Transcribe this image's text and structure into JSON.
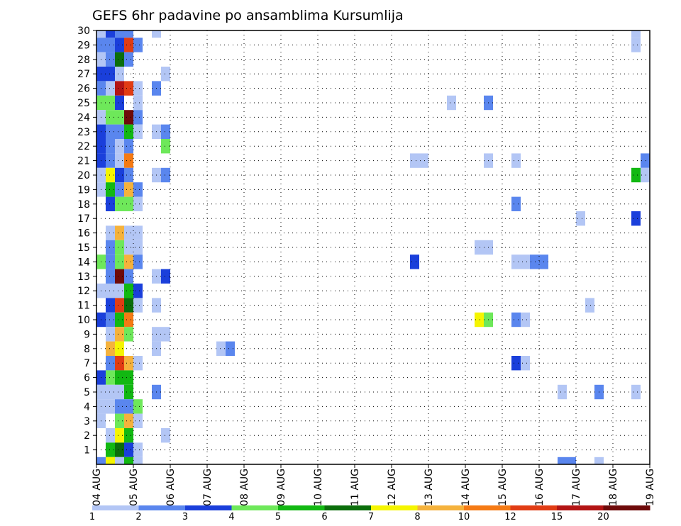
{
  "chart_data": {
    "type": "heatmap",
    "title": "GEFS 6hr padavine po ansamblima Kursumlija",
    "xlabel": "",
    "ylabel": "",
    "x_ticks": [
      "04 AUG",
      "05 AUG",
      "06 AUG",
      "07 AUG",
      "08 AUG",
      "09 AUG",
      "10 AUG",
      "11 AUG",
      "12 AUG",
      "13 AUG",
      "14 AUG",
      "15 AUG",
      "16 AUG",
      "17 AUG",
      "18 AUG",
      "19 AUG"
    ],
    "x_range": [
      "04 AUG 00Z",
      "19 AUG 00Z"
    ],
    "time_step_hours": 6,
    "y_ticks": [
      1,
      2,
      3,
      4,
      5,
      6,
      7,
      8,
      9,
      10,
      11,
      12,
      13,
      14,
      15,
      16,
      17,
      18,
      19,
      20,
      21,
      22,
      23,
      24,
      25,
      26,
      27,
      28,
      29,
      30
    ],
    "y_range": [
      0,
      30
    ],
    "grid": true,
    "legend": {
      "placement": "bottom",
      "levels": [
        1,
        2,
        3,
        4,
        5,
        6,
        7,
        8,
        10,
        12,
        15,
        20
      ],
      "labels": [
        "1",
        "2",
        "3",
        "4",
        "5",
        "6",
        "7",
        "8",
        "10",
        "12",
        "15",
        "20"
      ],
      "colors": [
        "#b3c6f5",
        "#5a86ee",
        "#1a3fdb",
        "#6ee85a",
        "#12b812",
        "#0b6e0b",
        "#f5f500",
        "#f5b23c",
        "#f57a14",
        "#e13c14",
        "#b31414",
        "#6e0a0a"
      ]
    },
    "cells": [
      {
        "x": "04 AUG 06Z",
        "y": 30,
        "c": 0
      },
      {
        "x": "04 AUG 12Z",
        "y": 30,
        "c": 2
      },
      {
        "x": "04 AUG 18Z",
        "y": 30,
        "c": 1
      },
      {
        "x": "05 AUG 00Z",
        "y": 30,
        "c": 1
      },
      {
        "x": "05 AUG 18Z",
        "y": 30,
        "c": 0
      },
      {
        "x": "18 AUG 18Z",
        "y": 30,
        "c": 0
      },
      {
        "x": "04 AUG 06Z",
        "y": 29,
        "c": 1
      },
      {
        "x": "04 AUG 12Z",
        "y": 29,
        "c": 1
      },
      {
        "x": "04 AUG 18Z",
        "y": 29,
        "c": 2
      },
      {
        "x": "05 AUG 00Z",
        "y": 29,
        "c": 9
      },
      {
        "x": "05 AUG 06Z",
        "y": 29,
        "c": 1
      },
      {
        "x": "18 AUG 18Z",
        "y": 29,
        "c": 0
      },
      {
        "x": "04 AUG 06Z",
        "y": 28,
        "c": 0
      },
      {
        "x": "04 AUG 12Z",
        "y": 28,
        "c": 1
      },
      {
        "x": "04 AUG 18Z",
        "y": 28,
        "c": 5
      },
      {
        "x": "05 AUG 00Z",
        "y": 28,
        "c": 1
      },
      {
        "x": "04 AUG 06Z",
        "y": 27,
        "c": 2
      },
      {
        "x": "04 AUG 12Z",
        "y": 27,
        "c": 2
      },
      {
        "x": "04 AUG 18Z",
        "y": 27,
        "c": 0
      },
      {
        "x": "06 AUG 00Z",
        "y": 27,
        "c": 0
      },
      {
        "x": "04 AUG 06Z",
        "y": 26,
        "c": 1
      },
      {
        "x": "04 AUG 12Z",
        "y": 26,
        "c": 0
      },
      {
        "x": "04 AUG 18Z",
        "y": 26,
        "c": 10
      },
      {
        "x": "05 AUG 00Z",
        "y": 26,
        "c": 9
      },
      {
        "x": "05 AUG 06Z",
        "y": 26,
        "c": 0
      },
      {
        "x": "05 AUG 18Z",
        "y": 26,
        "c": 1
      },
      {
        "x": "04 AUG 06Z",
        "y": 25,
        "c": 3
      },
      {
        "x": "04 AUG 12Z",
        "y": 25,
        "c": 3
      },
      {
        "x": "04 AUG 18Z",
        "y": 25,
        "c": 2
      },
      {
        "x": "05 AUG 06Z",
        "y": 25,
        "c": 0
      },
      {
        "x": "13 AUG 18Z",
        "y": 25,
        "c": 0
      },
      {
        "x": "14 AUG 18Z",
        "y": 25,
        "c": 1
      },
      {
        "x": "04 AUG 06Z",
        "y": 24,
        "c": 0
      },
      {
        "x": "04 AUG 12Z",
        "y": 24,
        "c": 3
      },
      {
        "x": "04 AUG 18Z",
        "y": 24,
        "c": 3
      },
      {
        "x": "05 AUG 00Z",
        "y": 24,
        "c": 11
      },
      {
        "x": "05 AUG 06Z",
        "y": 24,
        "c": 1
      },
      {
        "x": "04 AUG 06Z",
        "y": 23,
        "c": 2
      },
      {
        "x": "04 AUG 12Z",
        "y": 23,
        "c": 1
      },
      {
        "x": "04 AUG 18Z",
        "y": 23,
        "c": 1
      },
      {
        "x": "05 AUG 00Z",
        "y": 23,
        "c": 4
      },
      {
        "x": "05 AUG 06Z",
        "y": 23,
        "c": 0
      },
      {
        "x": "05 AUG 18Z",
        "y": 23,
        "c": 0
      },
      {
        "x": "06 AUG 00Z",
        "y": 23,
        "c": 1
      },
      {
        "x": "04 AUG 06Z",
        "y": 22,
        "c": 2
      },
      {
        "x": "04 AUG 12Z",
        "y": 22,
        "c": 1
      },
      {
        "x": "04 AUG 18Z",
        "y": 22,
        "c": 0
      },
      {
        "x": "05 AUG 00Z",
        "y": 22,
        "c": 1
      },
      {
        "x": "06 AUG 00Z",
        "y": 22,
        "c": 3
      },
      {
        "x": "04 AUG 06Z",
        "y": 21,
        "c": 2
      },
      {
        "x": "04 AUG 12Z",
        "y": 21,
        "c": 1
      },
      {
        "x": "04 AUG 18Z",
        "y": 21,
        "c": 0
      },
      {
        "x": "05 AUG 00Z",
        "y": 21,
        "c": 8
      },
      {
        "x": "12 AUG 18Z",
        "y": 21,
        "c": 0
      },
      {
        "x": "13 AUG 00Z",
        "y": 21,
        "c": 0
      },
      {
        "x": "14 AUG 18Z",
        "y": 21,
        "c": 0
      },
      {
        "x": "15 AUG 12Z",
        "y": 21,
        "c": 0
      },
      {
        "x": "19 AUG 00Z",
        "y": 21,
        "c": 1
      },
      {
        "x": "04 AUG 06Z",
        "y": 20,
        "c": 0
      },
      {
        "x": "04 AUG 12Z",
        "y": 20,
        "c": 6
      },
      {
        "x": "04 AUG 18Z",
        "y": 20,
        "c": 2
      },
      {
        "x": "05 AUG 00Z",
        "y": 20,
        "c": 1
      },
      {
        "x": "05 AUG 18Z",
        "y": 20,
        "c": 0
      },
      {
        "x": "06 AUG 00Z",
        "y": 20,
        "c": 1
      },
      {
        "x": "18 AUG 18Z",
        "y": 20,
        "c": 4
      },
      {
        "x": "19 AUG 00Z",
        "y": 20,
        "c": 0
      },
      {
        "x": "04 AUG 06Z",
        "y": 19,
        "c": 0
      },
      {
        "x": "04 AUG 12Z",
        "y": 19,
        "c": 4
      },
      {
        "x": "04 AUG 18Z",
        "y": 19,
        "c": 1
      },
      {
        "x": "05 AUG 00Z",
        "y": 19,
        "c": 7
      },
      {
        "x": "05 AUG 06Z",
        "y": 19,
        "c": 1
      },
      {
        "x": "04 AUG 12Z",
        "y": 18,
        "c": 2
      },
      {
        "x": "04 AUG 18Z",
        "y": 18,
        "c": 3
      },
      {
        "x": "05 AUG 00Z",
        "y": 18,
        "c": 3
      },
      {
        "x": "05 AUG 06Z",
        "y": 18,
        "c": 0
      },
      {
        "x": "15 AUG 12Z",
        "y": 18,
        "c": 1
      },
      {
        "x": "17 AUG 06Z",
        "y": 17,
        "c": 0
      },
      {
        "x": "18 AUG 18Z",
        "y": 17,
        "c": 2
      },
      {
        "x": "04 AUG 12Z",
        "y": 16,
        "c": 0
      },
      {
        "x": "04 AUG 18Z",
        "y": 16,
        "c": 7
      },
      {
        "x": "05 AUG 00Z",
        "y": 16,
        "c": 0
      },
      {
        "x": "05 AUG 06Z",
        "y": 16,
        "c": 0
      },
      {
        "x": "04 AUG 12Z",
        "y": 15,
        "c": 1
      },
      {
        "x": "04 AUG 18Z",
        "y": 15,
        "c": 3
      },
      {
        "x": "05 AUG 00Z",
        "y": 15,
        "c": 0
      },
      {
        "x": "05 AUG 06Z",
        "y": 15,
        "c": 0
      },
      {
        "x": "14 AUG 12Z",
        "y": 15,
        "c": 0
      },
      {
        "x": "14 AUG 18Z",
        "y": 15,
        "c": 0
      },
      {
        "x": "04 AUG 06Z",
        "y": 14,
        "c": 3
      },
      {
        "x": "04 AUG 12Z",
        "y": 14,
        "c": 1
      },
      {
        "x": "04 AUG 18Z",
        "y": 14,
        "c": 3
      },
      {
        "x": "05 AUG 00Z",
        "y": 14,
        "c": 7
      },
      {
        "x": "05 AUG 06Z",
        "y": 14,
        "c": 1
      },
      {
        "x": "12 AUG 18Z",
        "y": 14,
        "c": 2
      },
      {
        "x": "15 AUG 12Z",
        "y": 14,
        "c": 0
      },
      {
        "x": "15 AUG 18Z",
        "y": 14,
        "c": 0
      },
      {
        "x": "16 AUG 00Z",
        "y": 14,
        "c": 1
      },
      {
        "x": "16 AUG 06Z",
        "y": 14,
        "c": 1
      },
      {
        "x": "04 AUG 12Z",
        "y": 13,
        "c": 1
      },
      {
        "x": "04 AUG 18Z",
        "y": 13,
        "c": 11
      },
      {
        "x": "05 AUG 00Z",
        "y": 13,
        "c": 1
      },
      {
        "x": "05 AUG 18Z",
        "y": 13,
        "c": 0
      },
      {
        "x": "06 AUG 00Z",
        "y": 13,
        "c": 2
      },
      {
        "x": "04 AUG 06Z",
        "y": 12,
        "c": 0
      },
      {
        "x": "04 AUG 12Z",
        "y": 12,
        "c": 0
      },
      {
        "x": "04 AUG 18Z",
        "y": 12,
        "c": 0
      },
      {
        "x": "05 AUG 00Z",
        "y": 12,
        "c": 4
      },
      {
        "x": "05 AUG 06Z",
        "y": 12,
        "c": 2
      },
      {
        "x": "04 AUG 12Z",
        "y": 11,
        "c": 2
      },
      {
        "x": "04 AUG 18Z",
        "y": 11,
        "c": 9
      },
      {
        "x": "05 AUG 00Z",
        "y": 11,
        "c": 5
      },
      {
        "x": "05 AUG 06Z",
        "y": 11,
        "c": 0
      },
      {
        "x": "05 AUG 18Z",
        "y": 11,
        "c": 0
      },
      {
        "x": "17 AUG 12Z",
        "y": 11,
        "c": 0
      },
      {
        "x": "04 AUG 06Z",
        "y": 10,
        "c": 2
      },
      {
        "x": "04 AUG 12Z",
        "y": 10,
        "c": 1
      },
      {
        "x": "04 AUG 18Z",
        "y": 10,
        "c": 4
      },
      {
        "x": "05 AUG 00Z",
        "y": 10,
        "c": 8
      },
      {
        "x": "14 AUG 12Z",
        "y": 10,
        "c": 6
      },
      {
        "x": "14 AUG 18Z",
        "y": 10,
        "c": 3
      },
      {
        "x": "15 AUG 12Z",
        "y": 10,
        "c": 1
      },
      {
        "x": "15 AUG 18Z",
        "y": 10,
        "c": 0
      },
      {
        "x": "04 AUG 12Z",
        "y": 9,
        "c": 0
      },
      {
        "x": "04 AUG 18Z",
        "y": 9,
        "c": 7
      },
      {
        "x": "05 AUG 00Z",
        "y": 9,
        "c": 3
      },
      {
        "x": "05 AUG 18Z",
        "y": 9,
        "c": 0
      },
      {
        "x": "06 AUG 00Z",
        "y": 9,
        "c": 0
      },
      {
        "x": "04 AUG 12Z",
        "y": 8,
        "c": 7
      },
      {
        "x": "04 AUG 18Z",
        "y": 8,
        "c": 6
      },
      {
        "x": "05 AUG 18Z",
        "y": 8,
        "c": 0
      },
      {
        "x": "07 AUG 12Z",
        "y": 8,
        "c": 0
      },
      {
        "x": "07 AUG 18Z",
        "y": 8,
        "c": 1
      },
      {
        "x": "04 AUG 12Z",
        "y": 7,
        "c": 1
      },
      {
        "x": "04 AUG 18Z",
        "y": 7,
        "c": 9
      },
      {
        "x": "05 AUG 00Z",
        "y": 7,
        "c": 7
      },
      {
        "x": "05 AUG 06Z",
        "y": 7,
        "c": 0
      },
      {
        "x": "15 AUG 12Z",
        "y": 7,
        "c": 2
      },
      {
        "x": "15 AUG 18Z",
        "y": 7,
        "c": 0
      },
      {
        "x": "04 AUG 06Z",
        "y": 6,
        "c": 2
      },
      {
        "x": "04 AUG 12Z",
        "y": 6,
        "c": 3
      },
      {
        "x": "04 AUG 18Z",
        "y": 6,
        "c": 4
      },
      {
        "x": "05 AUG 00Z",
        "y": 6,
        "c": 4
      },
      {
        "x": "04 AUG 06Z",
        "y": 5,
        "c": 0
      },
      {
        "x": "04 AUG 12Z",
        "y": 5,
        "c": 0
      },
      {
        "x": "04 AUG 18Z",
        "y": 5,
        "c": 0
      },
      {
        "x": "05 AUG 00Z",
        "y": 5,
        "c": 4
      },
      {
        "x": "05 AUG 18Z",
        "y": 5,
        "c": 1
      },
      {
        "x": "16 AUG 18Z",
        "y": 5,
        "c": 0
      },
      {
        "x": "17 AUG 18Z",
        "y": 5,
        "c": 1
      },
      {
        "x": "18 AUG 18Z",
        "y": 5,
        "c": 0
      },
      {
        "x": "04 AUG 06Z",
        "y": 4,
        "c": 0
      },
      {
        "x": "04 AUG 12Z",
        "y": 4,
        "c": 0
      },
      {
        "x": "04 AUG 18Z",
        "y": 4,
        "c": 1
      },
      {
        "x": "05 AUG 00Z",
        "y": 4,
        "c": 1
      },
      {
        "x": "05 AUG 06Z",
        "y": 4,
        "c": 3
      },
      {
        "x": "04 AUG 06Z",
        "y": 3,
        "c": 0
      },
      {
        "x": "04 AUG 18Z",
        "y": 3,
        "c": 3
      },
      {
        "x": "05 AUG 00Z",
        "y": 3,
        "c": 7
      },
      {
        "x": "05 AUG 06Z",
        "y": 3,
        "c": 0
      },
      {
        "x": "04 AUG 12Z",
        "y": 2,
        "c": 0
      },
      {
        "x": "04 AUG 18Z",
        "y": 2,
        "c": 6
      },
      {
        "x": "05 AUG 00Z",
        "y": 2,
        "c": 4
      },
      {
        "x": "06 AUG 00Z",
        "y": 2,
        "c": 0
      },
      {
        "x": "04 AUG 12Z",
        "y": 1,
        "c": 4
      },
      {
        "x": "04 AUG 18Z",
        "y": 1,
        "c": 5
      },
      {
        "x": "05 AUG 00Z",
        "y": 1,
        "c": 2
      },
      {
        "x": "05 AUG 06Z",
        "y": 1,
        "c": 0
      },
      {
        "x": "04 AUG 06Z",
        "y": 0,
        "c": 1
      },
      {
        "x": "04 AUG 12Z",
        "y": 0,
        "c": 6
      },
      {
        "x": "04 AUG 18Z",
        "y": 0,
        "c": 0
      },
      {
        "x": "05 AUG 00Z",
        "y": 0,
        "c": 4
      },
      {
        "x": "05 AUG 06Z",
        "y": 0,
        "c": 0
      },
      {
        "x": "16 AUG 18Z",
        "y": 0,
        "c": 1
      },
      {
        "x": "17 AUG 00Z",
        "y": 0,
        "c": 1
      },
      {
        "x": "17 AUG 18Z",
        "y": 0,
        "c": 0
      }
    ]
  }
}
